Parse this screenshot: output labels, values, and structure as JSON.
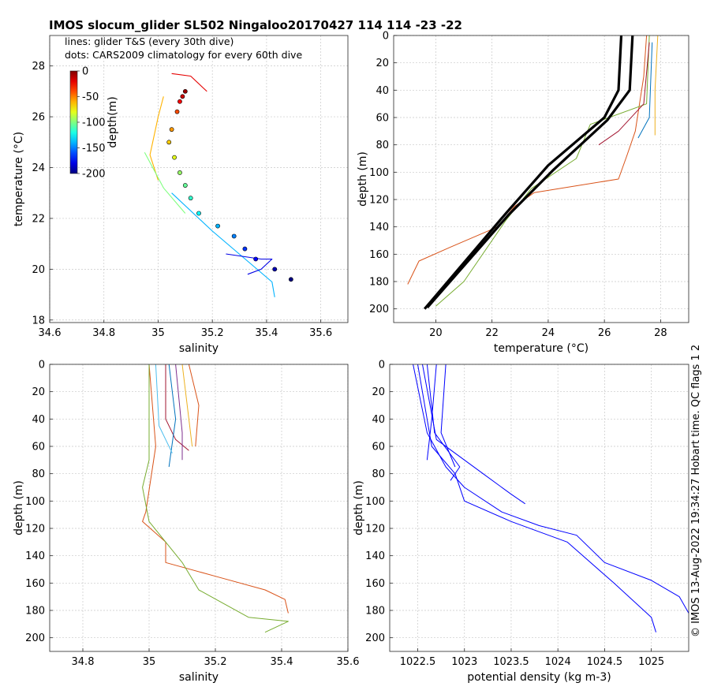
{
  "title": "IMOS slocum_glider SL502 Ningaloo20170427 114  114  -23  -22",
  "footer": "© IMOS 13-Aug-2022 19:34:27 Hobart time. QC flags 1  2",
  "chart_data": [
    {
      "id": "ts",
      "type": "scatter",
      "xlabel": "salinity",
      "ylabel": "temperature (°C)",
      "xlim": [
        34.6,
        35.7
      ],
      "ylim": [
        17.9,
        29.2
      ],
      "xticks": [
        34.6,
        34.8,
        35,
        35.2,
        35.4,
        35.6
      ],
      "yticks": [
        18,
        20,
        22,
        24,
        26,
        28
      ],
      "xticklabels": [
        "34.6",
        "34.8",
        "35",
        "35.2",
        "35.4",
        "35.6"
      ],
      "yticklabels": [
        "18",
        "20",
        "22",
        "24",
        "26",
        "28"
      ],
      "grid": true,
      "annotations": [
        "lines: glider T&S (every 30th dive)",
        "dots: CARS2009 climatology for every 60th dive"
      ],
      "colorbar": {
        "label": "depth(m)",
        "range": [
          -200,
          0
        ],
        "ticks": [
          "0",
          "-50",
          "-100",
          "-150",
          "-200"
        ]
      },
      "glider_lines": [
        {
          "depth_color": 20,
          "points": [
            [
              35.05,
              27.7
            ],
            [
              35.12,
              27.6
            ],
            [
              35.18,
              27.0
            ]
          ]
        },
        {
          "depth_color": 60,
          "points": [
            [
              35.02,
              26.8
            ],
            [
              35.0,
              26.0
            ],
            [
              34.97,
              24.5
            ],
            [
              35.0,
              23.5
            ]
          ]
        },
        {
          "depth_color": 100,
          "points": [
            [
              34.95,
              24.6
            ],
            [
              35.02,
              23.2
            ],
            [
              35.1,
              22.2
            ]
          ]
        },
        {
          "depth_color": 140,
          "points": [
            [
              35.05,
              23.0
            ],
            [
              35.2,
              21.5
            ],
            [
              35.42,
              19.5
            ],
            [
              35.43,
              18.9
            ]
          ]
        },
        {
          "depth_color": 180,
          "points": [
            [
              35.25,
              20.6
            ],
            [
              35.38,
              20.4
            ],
            [
              35.42,
              20.4
            ],
            [
              35.38,
              20.0
            ],
            [
              35.33,
              19.8
            ]
          ]
        }
      ],
      "climatology_dots": [
        {
          "salinity": 35.1,
          "temperature": 27.0,
          "depth": 5
        },
        {
          "salinity": 35.09,
          "temperature": 26.8,
          "depth": 15
        },
        {
          "salinity": 35.08,
          "temperature": 26.6,
          "depth": 25
        },
        {
          "salinity": 35.07,
          "temperature": 26.2,
          "depth": 40
        },
        {
          "salinity": 35.05,
          "temperature": 25.5,
          "depth": 55
        },
        {
          "salinity": 35.04,
          "temperature": 25.0,
          "depth": 65
        },
        {
          "salinity": 35.06,
          "temperature": 24.4,
          "depth": 80
        },
        {
          "salinity": 35.08,
          "temperature": 23.8,
          "depth": 95
        },
        {
          "salinity": 35.1,
          "temperature": 23.3,
          "depth": 105
        },
        {
          "salinity": 35.12,
          "temperature": 22.8,
          "depth": 115
        },
        {
          "salinity": 35.15,
          "temperature": 22.2,
          "depth": 125
        },
        {
          "salinity": 35.22,
          "temperature": 21.7,
          "depth": 140
        },
        {
          "salinity": 35.28,
          "temperature": 21.3,
          "depth": 150
        },
        {
          "salinity": 35.32,
          "temperature": 20.8,
          "depth": 165
        },
        {
          "salinity": 35.36,
          "temperature": 20.4,
          "depth": 175
        },
        {
          "salinity": 35.43,
          "temperature": 20.0,
          "depth": 190
        },
        {
          "salinity": 35.49,
          "temperature": 19.6,
          "depth": 200
        }
      ]
    },
    {
      "id": "temp_depth",
      "type": "line",
      "xlabel": "temperature (°C)",
      "ylabel": "depth (m)",
      "xlim": [
        18.5,
        29
      ],
      "ylim": [
        210,
        0
      ],
      "xticks": [
        20,
        22,
        24,
        26,
        28
      ],
      "yticks": [
        0,
        20,
        40,
        60,
        80,
        100,
        120,
        140,
        160,
        180,
        200
      ],
      "xticklabels": [
        "20",
        "22",
        "24",
        "26",
        "28"
      ],
      "yticklabels": [
        "0",
        "20",
        "40",
        "60",
        "80",
        "100",
        "120",
        "140",
        "160",
        "180",
        "200"
      ],
      "grid": true,
      "climatology_profiles": [
        {
          "color": "#000000",
          "points": [
            [
              26.6,
              0
            ],
            [
              26.5,
              40
            ],
            [
              26.0,
              60
            ],
            [
              24.0,
              95
            ],
            [
              22.5,
              130
            ],
            [
              19.6,
              200
            ]
          ]
        },
        {
          "color": "#000000",
          "points": [
            [
              27.0,
              0
            ],
            [
              26.9,
              40
            ],
            [
              26.1,
              62
            ],
            [
              24.2,
              98
            ],
            [
              22.6,
              131
            ],
            [
              19.7,
              199
            ]
          ]
        }
      ],
      "glider_profiles": [
        {
          "color": "#d95319",
          "points": [
            [
              27.5,
              0
            ],
            [
              27.4,
              30
            ],
            [
              27.1,
              70
            ],
            [
              26.8,
              88
            ],
            [
              26.5,
              105
            ],
            [
              23.5,
              115
            ],
            [
              22.8,
              125
            ],
            [
              22.2,
              140
            ],
            [
              20.5,
              155
            ],
            [
              19.4,
              165
            ],
            [
              19.0,
              182
            ]
          ]
        },
        {
          "color": "#77ac30",
          "points": [
            [
              27.6,
              0
            ],
            [
              27.5,
              50
            ],
            [
              25.5,
              65
            ],
            [
              25.0,
              90
            ],
            [
              23.4,
              112
            ],
            [
              22.5,
              135
            ],
            [
              21.0,
              180
            ],
            [
              20.0,
              198
            ]
          ]
        },
        {
          "color": "#a2142f",
          "points": [
            [
              27.6,
              5
            ],
            [
              27.4,
              50
            ],
            [
              26.5,
              70
            ],
            [
              25.8,
              80
            ]
          ]
        },
        {
          "color": "#0072bd",
          "points": [
            [
              27.7,
              5
            ],
            [
              27.6,
              60
            ],
            [
              27.2,
              75
            ]
          ]
        },
        {
          "color": "#edb120",
          "points": [
            [
              27.9,
              0
            ],
            [
              27.8,
              40
            ],
            [
              27.8,
              73
            ]
          ]
        }
      ]
    },
    {
      "id": "sal_depth",
      "type": "line",
      "xlabel": "salinity",
      "ylabel": "depth (m)",
      "xlim": [
        34.7,
        35.6
      ],
      "ylim": [
        210,
        0
      ],
      "xticks": [
        34.8,
        35,
        35.2,
        35.4,
        35.6
      ],
      "yticks": [
        0,
        20,
        40,
        60,
        80,
        100,
        120,
        140,
        160,
        180,
        200
      ],
      "xticklabels": [
        "34.8",
        "35",
        "35.2",
        "35.4",
        "35.6"
      ],
      "yticklabels": [
        "0",
        "20",
        "40",
        "60",
        "80",
        "100",
        "120",
        "140",
        "160",
        "180",
        "200"
      ],
      "grid": true,
      "profiles": [
        {
          "color": "#d95319",
          "points": [
            [
              35.0,
              0
            ],
            [
              35.02,
              60
            ],
            [
              34.99,
              108
            ],
            [
              34.98,
              115
            ],
            [
              35.05,
              130
            ],
            [
              35.05,
              145
            ],
            [
              35.2,
              155
            ],
            [
              35.35,
              165
            ],
            [
              35.41,
              172
            ],
            [
              35.42,
              182
            ]
          ]
        },
        {
          "color": "#77ac30",
          "points": [
            [
              35.0,
              0
            ],
            [
              35.0,
              70
            ],
            [
              34.98,
              90
            ],
            [
              35.0,
              115
            ],
            [
              35.1,
              145
            ],
            [
              35.15,
              165
            ],
            [
              35.3,
              185
            ],
            [
              35.42,
              188
            ],
            [
              35.35,
              196
            ]
          ]
        },
        {
          "color": "#a2142f",
          "points": [
            [
              35.05,
              0
            ],
            [
              35.05,
              40
            ],
            [
              35.08,
              55
            ],
            [
              35.12,
              63
            ]
          ]
        },
        {
          "color": "#0072bd",
          "points": [
            [
              35.06,
              0
            ],
            [
              35.08,
              40
            ],
            [
              35.06,
              75
            ]
          ]
        },
        {
          "color": "#edb120",
          "points": [
            [
              35.1,
              0
            ],
            [
              35.12,
              40
            ],
            [
              35.13,
              60
            ]
          ]
        },
        {
          "color": "#4dbeee",
          "points": [
            [
              35.02,
              0
            ],
            [
              35.03,
              45
            ],
            [
              35.07,
              65
            ]
          ]
        },
        {
          "color": "#7e2f8e",
          "points": [
            [
              35.08,
              0
            ],
            [
              35.1,
              50
            ],
            [
              35.1,
              70
            ]
          ]
        },
        {
          "color": "#d95319",
          "points": [
            [
              35.12,
              0
            ],
            [
              35.15,
              30
            ],
            [
              35.14,
              60
            ]
          ]
        }
      ]
    },
    {
      "id": "dens_depth",
      "type": "line",
      "xlabel": "potential density (kg m-3)",
      "ylabel": "depth (m)",
      "xlim": [
        1022.2,
        1025.4
      ],
      "ylim": [
        210,
        0
      ],
      "xticks": [
        1022.5,
        1023,
        1023.5,
        1024,
        1024.5,
        1025
      ],
      "yticks": [
        0,
        20,
        40,
        60,
        80,
        100,
        120,
        140,
        160,
        180,
        200
      ],
      "xticklabels": [
        "1022.5",
        "1023",
        "1023.5",
        "1024",
        "1024.5",
        "1025"
      ],
      "yticklabels": [
        "0",
        "20",
        "40",
        "60",
        "80",
        "100",
        "120",
        "140",
        "160",
        "180",
        "200"
      ],
      "grid": true,
      "profiles": [
        {
          "color": "#0000ff",
          "points": [
            [
              1022.45,
              0
            ],
            [
              1022.6,
              50
            ],
            [
              1022.8,
              75
            ],
            [
              1023.0,
              90
            ],
            [
              1023.4,
              108
            ],
            [
              1023.8,
              118
            ],
            [
              1024.2,
              125
            ],
            [
              1024.5,
              145
            ],
            [
              1025.0,
              158
            ],
            [
              1025.3,
              170
            ],
            [
              1025.4,
              182
            ]
          ]
        },
        {
          "color": "#0000ff",
          "points": [
            [
              1022.5,
              0
            ],
            [
              1022.65,
              60
            ],
            [
              1022.9,
              80
            ],
            [
              1023.0,
              100
            ],
            [
              1023.5,
              115
            ],
            [
              1024.1,
              130
            ],
            [
              1024.6,
              160
            ],
            [
              1025.0,
              185
            ],
            [
              1025.05,
              196
            ]
          ]
        },
        {
          "color": "#0000ff",
          "points": [
            [
              1022.55,
              0
            ],
            [
              1022.7,
              55
            ],
            [
              1023.2,
              80
            ],
            [
              1023.5,
              95
            ],
            [
              1023.65,
              102
            ]
          ]
        },
        {
          "color": "#0000ff",
          "points": [
            [
              1022.6,
              0
            ],
            [
              1022.68,
              50
            ],
            [
              1022.95,
              75
            ],
            [
              1022.85,
              85
            ]
          ]
        },
        {
          "color": "#0000ff",
          "points": [
            [
              1022.7,
              0
            ],
            [
              1022.65,
              40
            ],
            [
              1022.6,
              70
            ]
          ]
        },
        {
          "color": "#0000ff",
          "points": [
            [
              1022.8,
              0
            ],
            [
              1022.75,
              50
            ],
            [
              1022.9,
              75
            ]
          ]
        }
      ]
    }
  ]
}
